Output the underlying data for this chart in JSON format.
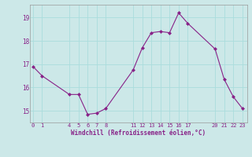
{
  "x": [
    0,
    1,
    4,
    5,
    6,
    7,
    8,
    11,
    12,
    13,
    14,
    15,
    16,
    17,
    20,
    21,
    22,
    23
  ],
  "y": [
    16.9,
    16.5,
    15.7,
    15.7,
    14.85,
    14.9,
    15.1,
    16.75,
    17.7,
    18.35,
    18.4,
    18.35,
    19.2,
    18.75,
    17.65,
    16.35,
    15.6,
    15.1
  ],
  "line_color": "#882288",
  "marker_color": "#882288",
  "bg_color": "#cce8e8",
  "grid_color": "#aadddd",
  "xlabel": "Windchill (Refroidissement éolien,°C)",
  "tick_color": "#882288",
  "label_color": "#882288",
  "yticks": [
    15,
    16,
    17,
    18,
    19
  ],
  "xticks": [
    0,
    1,
    4,
    5,
    6,
    7,
    8,
    11,
    12,
    13,
    14,
    15,
    16,
    17,
    20,
    21,
    22,
    23
  ],
  "xlim": [
    -0.3,
    23.5
  ],
  "ylim": [
    14.5,
    19.55
  ]
}
